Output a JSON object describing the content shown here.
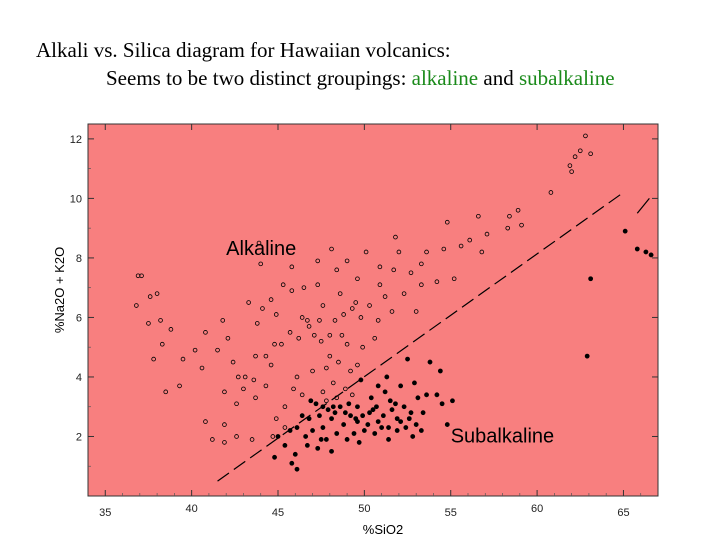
{
  "title": {
    "line1": "Alkali vs. Silica diagram for Hawaiian volcanics:",
    "line2_prefix": "Seems to be two distinct groupings: ",
    "line2_alkaline": "alkaline",
    "line2_and": " and ",
    "line2_subalkaline": "subalkaline"
  },
  "colors": {
    "plot_background": "#f87f7f",
    "highlight_text": "#1a8a1a",
    "marker_open": "#000000",
    "marker_filled": "#000000"
  },
  "chart_data": {
    "type": "scatter",
    "xlabel": "%SiO2",
    "ylabel": "%Na2O + K2O",
    "xlim": [
      34,
      67
    ],
    "ylim": [
      0,
      12.5
    ],
    "grid": false,
    "xticks": [
      35,
      40,
      45,
      50,
      55,
      60,
      65
    ],
    "yticks": [
      2,
      4,
      6,
      8,
      10,
      12
    ],
    "annotations": [
      {
        "text": "Alkaline",
        "x": 42,
        "y": 8.1
      },
      {
        "text": "Subalkaline",
        "x": 55,
        "y": 1.8
      }
    ],
    "divider_line": {
      "style": "dashed",
      "points": [
        [
          41.5,
          0.5
        ],
        [
          65,
          10.2
        ]
      ],
      "extra_segment": [
        [
          65.8,
          9.5
        ],
        [
          66.5,
          10.0
        ]
      ]
    },
    "series": [
      {
        "marker": "open-circle",
        "points": [
          [
            37.1,
            7.4
          ],
          [
            36.9,
            7.4
          ],
          [
            37.6,
            6.7
          ],
          [
            38.0,
            6.8
          ],
          [
            36.8,
            6.4
          ],
          [
            37.5,
            5.8
          ],
          [
            38.2,
            5.9
          ],
          [
            38.8,
            5.6
          ],
          [
            38.3,
            5.1
          ],
          [
            40.2,
            4.9
          ],
          [
            40.8,
            5.5
          ],
          [
            39.5,
            4.6
          ],
          [
            41.8,
            5.9
          ],
          [
            42.1,
            5.3
          ],
          [
            37.8,
            4.6
          ],
          [
            38.5,
            3.5
          ],
          [
            39.3,
            3.7
          ],
          [
            40.6,
            4.3
          ],
          [
            41.5,
            4.9
          ],
          [
            41.9,
            3.5
          ],
          [
            42.4,
            4.5
          ],
          [
            43.1,
            4.0
          ],
          [
            43.7,
            4.7
          ],
          [
            44.6,
            4.4
          ],
          [
            45.2,
            5.1
          ],
          [
            46.1,
            4.0
          ],
          [
            46.4,
            3.4
          ],
          [
            47.0,
            4.2
          ],
          [
            47.8,
            4.3
          ],
          [
            48.5,
            4.5
          ],
          [
            49.0,
            5.1
          ],
          [
            49.3,
            6.3
          ],
          [
            49.8,
            6.0
          ],
          [
            50.3,
            6.4
          ],
          [
            50.8,
            5.9
          ],
          [
            51.2,
            6.7
          ],
          [
            50.9,
            7.1
          ],
          [
            49.6,
            7.3
          ],
          [
            48.4,
            7.6
          ],
          [
            47.3,
            7.1
          ],
          [
            46.5,
            7.0
          ],
          [
            45.8,
            6.9
          ],
          [
            45.3,
            7.1
          ],
          [
            44.6,
            6.6
          ],
          [
            44.1,
            6.3
          ],
          [
            43.8,
            5.8
          ],
          [
            44.9,
            6.1
          ],
          [
            45.7,
            5.5
          ],
          [
            46.2,
            5.3
          ],
          [
            46.8,
            5.7
          ],
          [
            47.5,
            5.2
          ],
          [
            48.0,
            5.4
          ],
          [
            48.8,
            6.1
          ],
          [
            49.9,
            5.0
          ],
          [
            50.6,
            5.3
          ],
          [
            51.6,
            6.2
          ],
          [
            52.3,
            6.8
          ],
          [
            51.7,
            7.6
          ],
          [
            50.9,
            7.7
          ],
          [
            50.1,
            8.2
          ],
          [
            49.0,
            7.9
          ],
          [
            48.1,
            8.3
          ],
          [
            47.3,
            7.9
          ],
          [
            52.0,
            8.2
          ],
          [
            52.7,
            7.5
          ],
          [
            53.3,
            7.8
          ],
          [
            53.6,
            8.2
          ],
          [
            54.2,
            7.2
          ],
          [
            54.6,
            8.3
          ],
          [
            55.6,
            8.4
          ],
          [
            56.1,
            8.6
          ],
          [
            56.8,
            8.2
          ],
          [
            57.1,
            8.8
          ],
          [
            58.3,
            9.0
          ],
          [
            59.1,
            9.1
          ],
          [
            58.9,
            9.6
          ],
          [
            58.4,
            9.4
          ],
          [
            60.8,
            10.2
          ],
          [
            61.9,
            11.1
          ],
          [
            62.2,
            11.4
          ],
          [
            63.1,
            11.5
          ],
          [
            62.5,
            11.6
          ],
          [
            62.8,
            12.1
          ],
          [
            62.0,
            10.9
          ],
          [
            56.6,
            9.4
          ],
          [
            54.8,
            9.2
          ],
          [
            51.8,
            8.7
          ],
          [
            53.0,
            6.2
          ],
          [
            53.3,
            7.1
          ],
          [
            55.2,
            7.3
          ],
          [
            43.9,
            8.5
          ],
          [
            44.0,
            7.8
          ],
          [
            45.8,
            7.7
          ],
          [
            43.3,
            6.5
          ],
          [
            44.8,
            5.1
          ],
          [
            44.3,
            4.7
          ],
          [
            47.6,
            6.4
          ],
          [
            48.6,
            6.8
          ],
          [
            49.5,
            6.5
          ],
          [
            46.4,
            6.0
          ],
          [
            46.7,
            5.9
          ],
          [
            47.4,
            5.9
          ],
          [
            48.3,
            5.9
          ],
          [
            47.1,
            5.4
          ],
          [
            48.7,
            5.4
          ],
          [
            49.2,
            4.2
          ],
          [
            49.6,
            4.4
          ],
          [
            48.2,
            3.8
          ],
          [
            48.9,
            3.6
          ],
          [
            47.6,
            3.5
          ],
          [
            46.9,
            3.2
          ],
          [
            45.9,
            3.6
          ],
          [
            45.4,
            3.0
          ],
          [
            44.3,
            3.7
          ],
          [
            43.7,
            3.3
          ],
          [
            43.0,
            3.6
          ],
          [
            42.6,
            3.1
          ],
          [
            41.9,
            2.4
          ],
          [
            41.9,
            1.8
          ],
          [
            42.6,
            2.0
          ],
          [
            44.7,
            2.0
          ],
          [
            44.9,
            2.6
          ],
          [
            45.4,
            2.3
          ],
          [
            40.8,
            2.5
          ],
          [
            41.2,
            1.9
          ],
          [
            43.5,
            1.9
          ],
          [
            42.7,
            4.0
          ],
          [
            43.6,
            3.9
          ],
          [
            48.0,
            4.7
          ],
          [
            47.8,
            3.2
          ],
          [
            48.4,
            3.3
          ],
          [
            49.3,
            3.4
          ]
        ]
      },
      {
        "marker": "filled-circle",
        "points": [
          [
            46.0,
            1.4
          ],
          [
            45.8,
            1.1
          ],
          [
            46.1,
            0.9
          ],
          [
            46.6,
            2.0
          ],
          [
            47.0,
            2.2
          ],
          [
            47.3,
            1.6
          ],
          [
            47.5,
            1.9
          ],
          [
            47.8,
            1.9
          ],
          [
            48.1,
            1.5
          ],
          [
            47.6,
            2.3
          ],
          [
            48.4,
            2.1
          ],
          [
            48.1,
            2.6
          ],
          [
            48.8,
            2.4
          ],
          [
            49.2,
            2.7
          ],
          [
            49.0,
            1.9
          ],
          [
            49.4,
            2.1
          ],
          [
            49.6,
            2.5
          ],
          [
            49.9,
            2.7
          ],
          [
            50.2,
            2.4
          ],
          [
            50.5,
            2.9
          ],
          [
            50.8,
            2.5
          ],
          [
            51.1,
            2.7
          ],
          [
            51.4,
            2.3
          ],
          [
            51.6,
            2.9
          ],
          [
            51.9,
            2.6
          ],
          [
            52.1,
            2.5
          ],
          [
            52.4,
            2.3
          ],
          [
            52.7,
            2.8
          ],
          [
            53.0,
            2.4
          ],
          [
            51.5,
            3.2
          ],
          [
            51.2,
            3.5
          ],
          [
            51.8,
            3.1
          ],
          [
            52.3,
            3.0
          ],
          [
            50.7,
            3.0
          ],
          [
            50.4,
            3.3
          ],
          [
            49.6,
            3.0
          ],
          [
            49.1,
            3.1
          ],
          [
            48.6,
            3.0
          ],
          [
            48.2,
            3.0
          ],
          [
            47.6,
            3.0
          ],
          [
            47.2,
            3.1
          ],
          [
            46.8,
            2.6
          ],
          [
            46.4,
            2.7
          ],
          [
            46.1,
            2.3
          ],
          [
            45.7,
            2.2
          ],
          [
            45.0,
            2.0
          ],
          [
            45.4,
            1.7
          ],
          [
            44.8,
            1.3
          ],
          [
            50.0,
            2.2
          ],
          [
            50.6,
            2.1
          ],
          [
            51.0,
            2.3
          ],
          [
            51.9,
            2.2
          ],
          [
            52.6,
            2.6
          ],
          [
            53.1,
            3.3
          ],
          [
            53.6,
            3.4
          ],
          [
            53.4,
            2.8
          ],
          [
            54.2,
            3.4
          ],
          [
            54.5,
            3.1
          ],
          [
            55.1,
            3.2
          ],
          [
            54.8,
            2.4
          ],
          [
            54.4,
            4.2
          ],
          [
            53.8,
            4.5
          ],
          [
            52.5,
            4.6
          ],
          [
            62.9,
            4.7
          ],
          [
            66.3,
            8.2
          ],
          [
            65.8,
            8.3
          ],
          [
            66.6,
            8.1
          ],
          [
            65.1,
            8.9
          ],
          [
            63.1,
            7.3
          ],
          [
            51.3,
            4.0
          ],
          [
            50.8,
            3.7
          ],
          [
            52.9,
            3.8
          ],
          [
            52.1,
            3.7
          ],
          [
            49.8,
            3.9
          ],
          [
            50.3,
            2.8
          ],
          [
            49.5,
            2.6
          ],
          [
            48.9,
            2.8
          ],
          [
            47.9,
            2.9
          ],
          [
            47.4,
            2.7
          ],
          [
            46.9,
            3.2
          ],
          [
            46.7,
            1.7
          ],
          [
            48.3,
            2.8
          ],
          [
            49.7,
            1.8
          ],
          [
            51.4,
            1.9
          ],
          [
            52.8,
            2.0
          ],
          [
            53.3,
            2.2
          ]
        ]
      }
    ]
  }
}
